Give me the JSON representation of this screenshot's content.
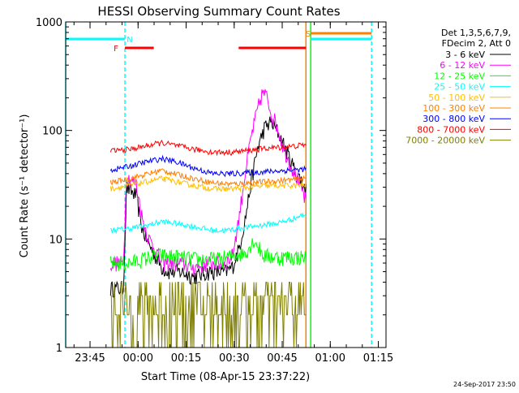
{
  "chart_data": {
    "type": "line",
    "title": "HESSI Observing Summary Count Rates",
    "xlabel": "Start Time (08-Apr-15 23:37:22)",
    "ylabel": "Count Rate (s⁻¹ detector⁻¹)",
    "yscale": "log",
    "ylim": [
      1,
      1000
    ],
    "xlim_minutes": [
      0,
      100
    ],
    "x_ticks": [
      {
        "label": "23:45",
        "min": 7.6
      },
      {
        "label": "00:00",
        "min": 22.6
      },
      {
        "label": "00:15",
        "min": 37.6
      },
      {
        "label": "00:30",
        "min": 52.6
      },
      {
        "label": "00:45",
        "min": 67.6
      },
      {
        "label": "01:00",
        "min": 82.6
      },
      {
        "label": "01:15",
        "min": 97.6
      }
    ],
    "y_ticks": [
      {
        "label": "1",
        "value": 1
      },
      {
        "label": "10",
        "value": 10
      },
      {
        "label": "100",
        "value": 100
      },
      {
        "label": "1000",
        "value": 1000
      }
    ],
    "legend": {
      "position": "right",
      "header": [
        "Det 1,3,5,6,7,9,",
        "FDecim 2, Att 0"
      ]
    },
    "series": [
      {
        "name": "3 - 6 keV",
        "color": "#000000",
        "points": [
          [
            14,
            3.5
          ],
          [
            18,
            3.5
          ],
          [
            19,
            30
          ],
          [
            22,
            25
          ],
          [
            24,
            12
          ],
          [
            26,
            9
          ],
          [
            28,
            7
          ],
          [
            30,
            5.5
          ],
          [
            32,
            5
          ],
          [
            36,
            5
          ],
          [
            40,
            4.5
          ],
          [
            45,
            5
          ],
          [
            50,
            5
          ],
          [
            52,
            5.5
          ],
          [
            54,
            8
          ],
          [
            56,
            15
          ],
          [
            58,
            35
          ],
          [
            60,
            70
          ],
          [
            62,
            105
          ],
          [
            64,
            120
          ],
          [
            66,
            100
          ],
          [
            68,
            75
          ],
          [
            70,
            55
          ],
          [
            72,
            40
          ],
          [
            73.5,
            35
          ],
          [
            75,
            28
          ]
        ]
      },
      {
        "name": "6 - 12 keV",
        "color": "#ff00ff",
        "points": [
          [
            14,
            6
          ],
          [
            18,
            6
          ],
          [
            19,
            38
          ],
          [
            22,
            32
          ],
          [
            24,
            15
          ],
          [
            26,
            10
          ],
          [
            28,
            8
          ],
          [
            30,
            6
          ],
          [
            32,
            6
          ],
          [
            36,
            6
          ],
          [
            40,
            5.5
          ],
          [
            45,
            6
          ],
          [
            50,
            6
          ],
          [
            52,
            7
          ],
          [
            54,
            15
          ],
          [
            56,
            40
          ],
          [
            58,
            90
          ],
          [
            60,
            160
          ],
          [
            61.5,
            225
          ],
          [
            63,
            200
          ],
          [
            64,
            150
          ],
          [
            66,
            110
          ],
          [
            68,
            70
          ],
          [
            70,
            50
          ],
          [
            72,
            38
          ],
          [
            73.5,
            30
          ],
          [
            75,
            22
          ]
        ]
      },
      {
        "name": "12 - 25 keV",
        "color": "#00ff00",
        "points": [
          [
            14,
            6
          ],
          [
            20,
            6
          ],
          [
            24,
            6.5
          ],
          [
            28,
            7
          ],
          [
            32,
            7
          ],
          [
            40,
            6.5
          ],
          [
            48,
            6.5
          ],
          [
            52,
            7
          ],
          [
            56,
            7.5
          ],
          [
            58,
            9
          ],
          [
            59,
            10
          ],
          [
            60,
            8.5
          ],
          [
            62,
            7
          ],
          [
            66,
            6.8
          ],
          [
            70,
            6.8
          ],
          [
            75,
            6.8
          ]
        ]
      },
      {
        "name": "25 - 50 keV",
        "color": "#00ffff",
        "points": [
          [
            14,
            12
          ],
          [
            20,
            12.5
          ],
          [
            26,
            13.5
          ],
          [
            30,
            14.5
          ],
          [
            34,
            14
          ],
          [
            40,
            13
          ],
          [
            46,
            12
          ],
          [
            50,
            12
          ],
          [
            54,
            12.5
          ],
          [
            58,
            13
          ],
          [
            62,
            13.5
          ],
          [
            66,
            14
          ],
          [
            70,
            15
          ],
          [
            75,
            17
          ]
        ]
      },
      {
        "name": "50 - 100 keV",
        "color": "#ffbf00",
        "points": [
          [
            14,
            29
          ],
          [
            20,
            31
          ],
          [
            26,
            34
          ],
          [
            30,
            36
          ],
          [
            34,
            34
          ],
          [
            40,
            31
          ],
          [
            46,
            29
          ],
          [
            52,
            29
          ],
          [
            58,
            30
          ],
          [
            64,
            31
          ],
          [
            70,
            31
          ],
          [
            75,
            31
          ]
        ]
      },
      {
        "name": "100 - 300 keV",
        "color": "#ff8000",
        "points": [
          [
            14,
            33
          ],
          [
            20,
            36
          ],
          [
            26,
            40
          ],
          [
            30,
            43
          ],
          [
            34,
            40
          ],
          [
            40,
            36
          ],
          [
            46,
            33
          ],
          [
            52,
            32
          ],
          [
            58,
            33
          ],
          [
            64,
            34
          ],
          [
            70,
            35
          ],
          [
            75,
            36
          ]
        ]
      },
      {
        "name": "300 - 800 keV",
        "color": "#0000ff",
        "points": [
          [
            14,
            43
          ],
          [
            20,
            47
          ],
          [
            26,
            52
          ],
          [
            30,
            55
          ],
          [
            34,
            52
          ],
          [
            40,
            45
          ],
          [
            46,
            40
          ],
          [
            52,
            40
          ],
          [
            58,
            41
          ],
          [
            64,
            42
          ],
          [
            70,
            43
          ],
          [
            75,
            44
          ]
        ]
      },
      {
        "name": "800 - 7000 keV",
        "color": "#ff0000",
        "points": [
          [
            14,
            65
          ],
          [
            20,
            67
          ],
          [
            26,
            73
          ],
          [
            30,
            77
          ],
          [
            34,
            73
          ],
          [
            40,
            67
          ],
          [
            46,
            63
          ],
          [
            52,
            63
          ],
          [
            58,
            66
          ],
          [
            64,
            69
          ],
          [
            70,
            71
          ],
          [
            75,
            74
          ]
        ]
      },
      {
        "name": "7000 - 20000 keV",
        "color": "#808000",
        "points": [
          [
            14,
            2.5
          ],
          [
            20,
            2.5
          ],
          [
            26,
            2.5
          ],
          [
            32,
            2.5
          ],
          [
            38,
            2.5
          ],
          [
            44,
            2.5
          ],
          [
            50,
            2.5
          ],
          [
            56,
            2.5
          ],
          [
            62,
            2.5
          ],
          [
            68,
            2.5
          ],
          [
            75,
            2.5
          ]
        ]
      }
    ],
    "annotations": [
      {
        "label": "F",
        "color": "#ff0000",
        "intervals": [
          [
            18.5,
            27.5
          ],
          [
            54,
            75
          ]
        ]
      },
      {
        "label": "N",
        "color": "#00ffff",
        "intervals": [
          [
            0,
            18.5
          ]
        ]
      },
      {
        "label": "S",
        "color": "#ff8000",
        "intervals": [
          [
            76.5,
            95.5
          ]
        ]
      },
      {
        "label": "",
        "color": "#00ffff",
        "intervals": [
          [
            76.5,
            95.5
          ]
        ]
      }
    ],
    "vertical_markers": [
      {
        "min": 0,
        "color": "#00ffff",
        "style": "solid"
      },
      {
        "min": 18.5,
        "color": "#00ffff",
        "style": "dashed"
      },
      {
        "min": 75,
        "color": "#ff8000",
        "style": "solid"
      },
      {
        "min": 76.5,
        "color": "#00ff00",
        "style": "solid"
      },
      {
        "min": 95.5,
        "color": "#00ffff",
        "style": "dashed"
      }
    ],
    "footer_date": "24-Sep-2017 23:50"
  }
}
